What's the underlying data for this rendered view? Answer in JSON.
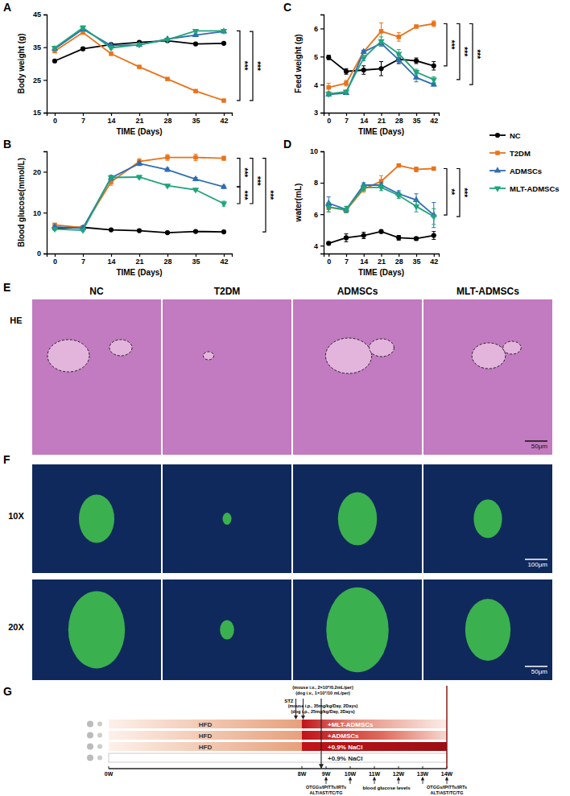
{
  "chart_data": [
    {
      "type": "line",
      "panel": "A",
      "ylabel": "Body weight (g)",
      "xlabel": "TIME (Days)",
      "x": [
        0,
        7,
        14,
        21,
        28,
        35,
        42
      ],
      "xlim": [
        -2,
        44
      ],
      "xticks": [
        0,
        7,
        14,
        21,
        28,
        35,
        42
      ],
      "ylim": [
        15,
        45
      ],
      "yticks": [
        15,
        25,
        35,
        45
      ],
      "legend": "right",
      "series": [
        {
          "name": "NC",
          "color": "#000000",
          "marker": "circle",
          "values": [
            30.8,
            34.5,
            35.8,
            36.5,
            37.0,
            36.0,
            36.2
          ],
          "errors": [
            0.3,
            0.4,
            0.3,
            0.3,
            0.3,
            0.3,
            0.3
          ]
        },
        {
          "name": "T2DM",
          "color": "#e8731a",
          "marker": "square",
          "values": [
            33.8,
            39.5,
            33.0,
            29.0,
            25.3,
            21.6,
            18.7
          ],
          "errors": [
            0.4,
            0.5,
            0.4,
            0.3,
            0.3,
            0.3,
            0.3
          ]
        },
        {
          "name": "ADMSCs",
          "color": "#2f6db3",
          "marker": "triangle",
          "values": [
            34.5,
            40.5,
            35.5,
            35.7,
            37.5,
            38.7,
            39.8
          ],
          "errors": [
            0.4,
            0.5,
            0.4,
            0.3,
            0.3,
            0.4,
            0.4
          ]
        },
        {
          "name": "MLT-ADMSCs",
          "color": "#21a37c",
          "marker": "triangle-down",
          "values": [
            34.8,
            41.0,
            34.8,
            35.8,
            37.3,
            40.0,
            40.0
          ],
          "errors": [
            0.4,
            0.5,
            0.4,
            0.3,
            0.3,
            0.4,
            0.4
          ]
        }
      ],
      "annotations": [
        {
          "text": "***",
          "series": [
            1,
            3
          ]
        },
        {
          "text": "***",
          "series": [
            1,
            2
          ]
        }
      ]
    },
    {
      "type": "line",
      "panel": "B",
      "ylabel": "Blood glucose(mmol/L)",
      "xlabel": "TIME (Days)",
      "x": [
        0,
        7,
        14,
        21,
        28,
        35,
        42
      ],
      "xlim": [
        -2,
        44
      ],
      "xticks": [
        0,
        7,
        14,
        21,
        28,
        35,
        42
      ],
      "ylim": [
        0,
        25
      ],
      "yticks": [
        0,
        10,
        20
      ],
      "series": [
        {
          "name": "NC",
          "color": "#000000",
          "marker": "circle",
          "values": [
            6.2,
            6.4,
            5.8,
            5.6,
            5.1,
            5.4,
            5.3
          ],
          "errors": [
            0.2,
            0.2,
            0.2,
            0.2,
            0.2,
            0.2,
            0.2
          ]
        },
        {
          "name": "T2DM",
          "color": "#e8731a",
          "marker": "square",
          "values": [
            7.0,
            6.3,
            17.5,
            22.5,
            23.5,
            23.5,
            23.3
          ],
          "errors": [
            0.4,
            0.3,
            0.8,
            0.7,
            0.7,
            0.8,
            0.5
          ]
        },
        {
          "name": "ADMSCs",
          "color": "#2f6db3",
          "marker": "triangle",
          "values": [
            6.5,
            6.2,
            18.5,
            22.0,
            20.5,
            18.2,
            16.3
          ],
          "errors": [
            0.3,
            0.3,
            0.6,
            0.5,
            0.4,
            0.4,
            0.4
          ]
        },
        {
          "name": "MLT-ADMSCs",
          "color": "#21a37c",
          "marker": "triangle-down",
          "values": [
            6.0,
            5.7,
            18.6,
            18.7,
            16.6,
            15.6,
            12.2
          ],
          "errors": [
            0.3,
            0.3,
            0.5,
            0.4,
            0.3,
            0.3,
            0.6
          ]
        }
      ],
      "annotations": [
        {
          "text": "***",
          "series": [
            1,
            2
          ]
        },
        {
          "text": "***",
          "series": [
            2,
            3
          ]
        },
        {
          "text": "***",
          "series": [
            1,
            3
          ]
        },
        {
          "text": "***",
          "series": [
            1,
            0
          ]
        }
      ]
    },
    {
      "type": "line",
      "panel": "C",
      "ylabel": "Feed weight (g)",
      "xlabel": "TIME (Days)",
      "x": [
        0,
        7,
        14,
        21,
        28,
        35,
        42
      ],
      "xlim": [
        -2,
        44
      ],
      "xticks": [
        0,
        7,
        14,
        21,
        28,
        35,
        42
      ],
      "ylim": [
        3,
        6.5
      ],
      "yticks": [
        3,
        4,
        5,
        6
      ],
      "series": [
        {
          "name": "NC",
          "color": "#000000",
          "marker": "circle",
          "values": [
            4.97,
            4.47,
            4.52,
            4.57,
            4.9,
            4.85,
            4.67
          ],
          "errors": [
            0.08,
            0.1,
            0.15,
            0.25,
            0.15,
            0.1,
            0.15
          ]
        },
        {
          "name": "T2DM",
          "color": "#e8731a",
          "marker": "square",
          "values": [
            3.9,
            4.05,
            5.17,
            5.9,
            5.7,
            6.07,
            6.17
          ],
          "errors": [
            0.15,
            0.1,
            0.05,
            0.3,
            0.15,
            0.05,
            0.1
          ]
        },
        {
          "name": "ADMSCs",
          "color": "#2f6db3",
          "marker": "triangle",
          "values": [
            3.65,
            3.7,
            5.17,
            5.47,
            4.88,
            4.25,
            4.0
          ],
          "errors": [
            0.05,
            0.05,
            0.05,
            0.1,
            0.1,
            0.15,
            0.05
          ]
        },
        {
          "name": "MLT-ADMSCs",
          "color": "#21a37c",
          "marker": "triangle-down",
          "values": [
            3.67,
            3.75,
            4.95,
            5.55,
            5.1,
            4.45,
            4.18
          ],
          "errors": [
            0.05,
            0.05,
            0.1,
            0.15,
            0.15,
            0.1,
            0.1
          ]
        }
      ],
      "annotations": [
        {
          "text": "***",
          "series": [
            1,
            0
          ]
        },
        {
          "text": "***",
          "series": [
            1,
            3
          ]
        },
        {
          "text": "***",
          "series": [
            1,
            2
          ]
        }
      ]
    },
    {
      "type": "line",
      "panel": "D",
      "ylabel": "water(mL)",
      "xlabel": "TIME (Days)",
      "x": [
        0,
        7,
        14,
        21,
        28,
        35,
        42
      ],
      "xlim": [
        -2,
        44
      ],
      "xticks": [
        0,
        7,
        14,
        21,
        28,
        35,
        42
      ],
      "ylim": [
        3.5,
        10
      ],
      "yticks": [
        4,
        6,
        8,
        10
      ],
      "series": [
        {
          "name": "NC",
          "color": "#000000",
          "marker": "circle",
          "values": [
            4.15,
            4.5,
            4.65,
            4.9,
            4.5,
            4.45,
            4.65
          ],
          "errors": [
            0.1,
            0.25,
            0.2,
            0.1,
            0.15,
            0.1,
            0.25
          ]
        },
        {
          "name": "T2DM",
          "color": "#e8731a",
          "marker": "square",
          "values": [
            6.45,
            6.25,
            7.6,
            8.1,
            9.1,
            8.85,
            8.9
          ],
          "errors": [
            0.3,
            0.15,
            0.2,
            0.35,
            0.1,
            0.15,
            0.1
          ]
        },
        {
          "name": "ADMSCs",
          "color": "#2f6db3",
          "marker": "triangle",
          "values": [
            6.7,
            6.3,
            7.85,
            7.85,
            7.3,
            6.9,
            5.95
          ],
          "errors": [
            0.4,
            0.2,
            0.15,
            0.15,
            0.2,
            0.4,
            0.8
          ]
        },
        {
          "name": "MLT-ADMSCs",
          "color": "#21a37c",
          "marker": "triangle-down",
          "values": [
            6.45,
            6.3,
            7.7,
            7.7,
            7.2,
            6.5,
            5.85
          ],
          "errors": [
            0.3,
            0.2,
            0.2,
            0.2,
            0.2,
            0.35,
            0.5
          ]
        }
      ],
      "annotations": [
        {
          "text": "**",
          "series": [
            1,
            2
          ]
        },
        {
          "text": "***",
          "series": [
            1,
            3
          ]
        }
      ]
    }
  ],
  "histology": {
    "panels": [
      "E",
      "F"
    ],
    "columns": [
      "NC",
      "T2DM",
      "ADMSCs",
      "MLT-ADMSCs"
    ],
    "rows": [
      "HE",
      "10X",
      "20X"
    ],
    "scale_bars": [
      "50μm",
      "100μm",
      "50μm"
    ]
  },
  "timeline": {
    "panel": "G",
    "weeks": [
      {
        "value": 0,
        "label": "0W"
      },
      {
        "value": 8,
        "label": "8W"
      },
      {
        "value": 9,
        "label": "9W"
      },
      {
        "value": 10,
        "label": "10W"
      },
      {
        "value": 11,
        "label": "11W"
      },
      {
        "value": 12,
        "label": "12W"
      },
      {
        "value": 13,
        "label": "13W"
      },
      {
        "value": 14,
        "label": "14W"
      }
    ],
    "injection": {
      "week": 8.8,
      "notes": [
        "(mouse i.v., 2×10⁶/0.2mL/per)",
        "(dog i.v., 1×10⁷/10 mL/per)"
      ]
    },
    "stz": {
      "weeks": [
        7.75,
        8.05
      ],
      "label": "STZ",
      "notes": [
        "(mouse i.p., 35mg/kg/Day, 2Days)",
        "(dog i.p., 25mg/kg/Day, 2Days)"
      ]
    },
    "hfd_weeks": [
      0,
      8
    ],
    "treatment_weeks": [
      8,
      14
    ],
    "groups": [
      {
        "diet": "HFD",
        "treatment": "+MLT-ADMSCs"
      },
      {
        "diet": "HFD",
        "treatment": "+ADMSCs"
      },
      {
        "diet": "HFD",
        "treatment": "+0.9% NaCl"
      },
      {
        "treatment": "+0.9% NaCl"
      }
    ],
    "glucose": {
      "weeks": [
        10,
        11,
        12,
        13
      ],
      "label": "blood glucose levels"
    },
    "tests": {
      "weeks": [
        9,
        14
      ],
      "lines": [
        "OTGGs/IPITTs/IRTs",
        "ALT/AST/TC/TG"
      ]
    }
  }
}
